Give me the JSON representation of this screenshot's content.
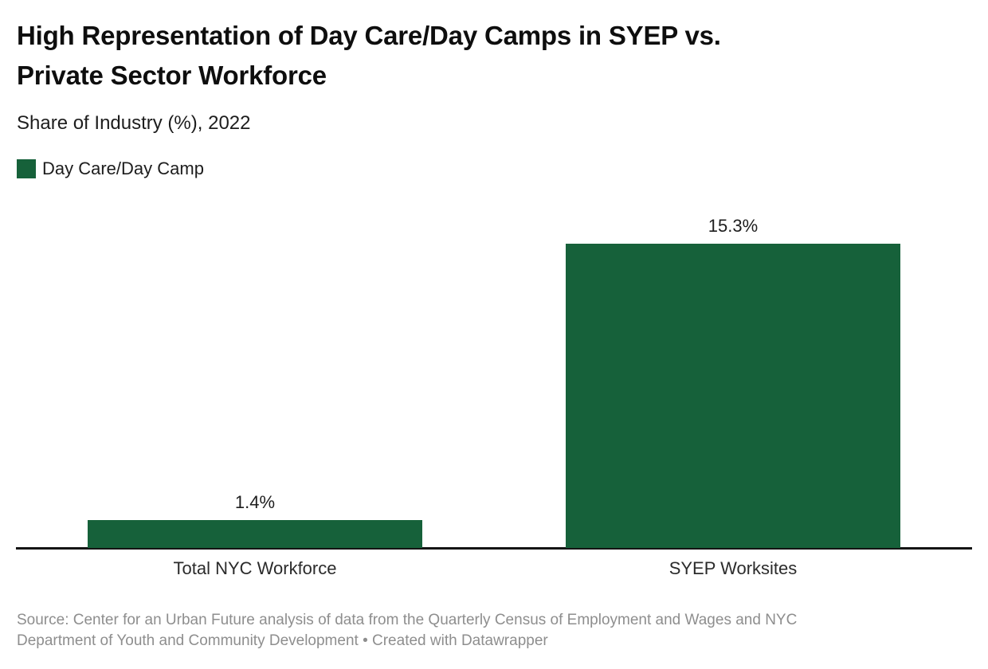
{
  "header": {
    "title": "High Representation of Day Care/Day Camps in SYEP vs.\nPrivate Sector Workforce",
    "subtitle": "Share of Industry (%), 2022"
  },
  "legend": {
    "items": [
      {
        "label": "Day Care/Day Camp",
        "color": "#16613a"
      }
    ]
  },
  "chart_data": {
    "type": "bar",
    "title": "High Representation of Day Care/Day Camps in SYEP vs. Private Sector Workforce",
    "subtitle": "Share of Industry (%), 2022",
    "categories": [
      "Total NYC Workforce",
      "SYEP Worksites"
    ],
    "series": [
      {
        "name": "Day Care/Day Camp",
        "values": [
          1.4,
          15.3
        ],
        "labels": [
          "1.4%",
          "15.3%"
        ],
        "color": "#16613a"
      }
    ],
    "xlabel": "",
    "ylabel": "Share of Industry (%)",
    "ylim": [
      0,
      15.3
    ],
    "grid": false,
    "legend_position": "top-left",
    "value_labels": true
  },
  "footer": {
    "text": "Source: Center for an Urban Future analysis of data from the Quarterly Census of Employment and Wages and NYC\nDepartment of Youth and Community Development • Created with Datawrapper"
  },
  "colors": {
    "bar": "#16613a",
    "axis": "#141414",
    "title_text": "#0e0e0e",
    "body_text": "#1d1d1d",
    "muted_text": "#8e8e8e",
    "background": "#ffffff"
  }
}
